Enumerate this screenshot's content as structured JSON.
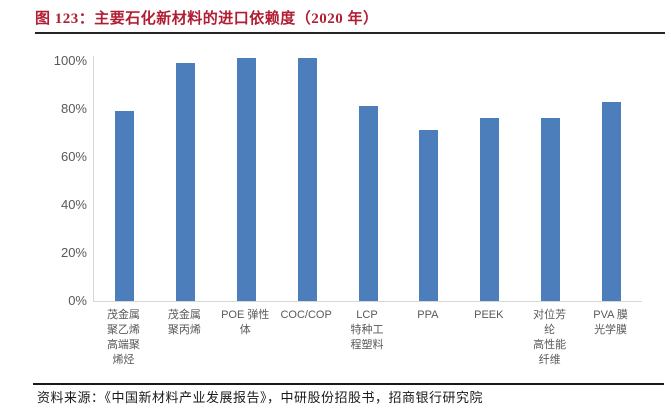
{
  "header": {
    "title": "图 123：主要石化新材料的进口依赖度（2020 年）"
  },
  "footer": {
    "source": "资料来源：《中国新材料产业发展报告》，中研股份招股书，招商银行研究院"
  },
  "colors": {
    "bar": "#4D7EBC",
    "title_text": "#B01E33",
    "axis_line": "#D6D6D6",
    "tick_text": "#595959",
    "title_rule": "#262626",
    "footer_rule": "#1A1A1A"
  },
  "chart_data": {
    "type": "bar",
    "title": "图 123：主要石化新材料的进口依赖度（2020 年）",
    "categories": [
      "茂金属聚乙烯高端聚烯烃",
      "茂金属聚丙烯",
      "POE 弹性体",
      "COC/COP",
      "LCP 特种工程塑料",
      "PPA",
      "PEEK",
      "对位芳纶 高性能纤维",
      "PVA 膜光学膜"
    ],
    "category_lines": [
      [
        "茂金属",
        "聚乙烯",
        "高端聚",
        "烯烃"
      ],
      [
        "茂金属",
        "聚丙烯"
      ],
      [
        "POE 弹性",
        "体"
      ],
      [
        "COC/COP"
      ],
      [
        "LCP",
        "特种工",
        "程塑料"
      ],
      [
        "PPA"
      ],
      [
        "PEEK"
      ],
      [
        "对位芳",
        "纶",
        "高性能",
        "纤维"
      ],
      [
        "PVA 膜",
        "光学膜"
      ]
    ],
    "values": [
      79,
      99,
      101,
      101,
      81,
      71,
      76,
      76,
      83
    ],
    "unit": "%",
    "xlabel": "",
    "ylabel": "",
    "ylim": [
      0,
      102
    ],
    "yticks": [
      0,
      20,
      40,
      60,
      80,
      100
    ],
    "ytick_suffix": "%",
    "grid": false,
    "legend": null
  }
}
